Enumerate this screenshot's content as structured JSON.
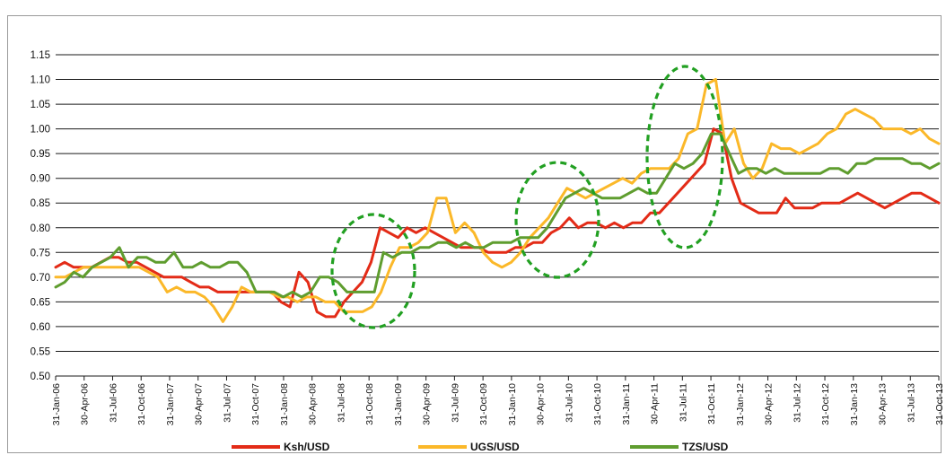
{
  "chart_data": {
    "type": "line",
    "title": "",
    "xlabel": "",
    "ylabel": "",
    "ylim": [
      0.5,
      1.15
    ],
    "yticks": [
      "0.50",
      "0.55",
      "0.60",
      "0.65",
      "0.70",
      "0.75",
      "0.80",
      "0.85",
      "0.90",
      "0.95",
      "1.00",
      "1.05",
      "1.10",
      "1.15"
    ],
    "grid": true,
    "legend_position": "bottom",
    "xticks": [
      "31-Jan-06",
      "30-Apr-06",
      "31-Jul-06",
      "31-Oct-06",
      "31-Jan-07",
      "30-Apr-07",
      "31-Jul-07",
      "31-Oct-07",
      "31-Jan-08",
      "30-Apr-08",
      "31-Jul-08",
      "31-Oct-08",
      "31-Jan-09",
      "30-Apr-09",
      "31-Jul-09",
      "31-Oct-09",
      "31-Jan-10",
      "30-Apr-10",
      "31-Jul-10",
      "31-Oct-10",
      "31-Jan-11",
      "30-Apr-11",
      "31-Jul-11",
      "31-Oct-11",
      "31-Jan-12",
      "30-Apr-12",
      "31-Jul-12",
      "31-Oct-12",
      "31-Jan-13",
      "30-Apr-13",
      "31-Jul-13",
      "31-Oct-13"
    ],
    "series": [
      {
        "name": "Ksh/USD",
        "color": "#e32b17",
        "values": [
          0.72,
          0.73,
          0.72,
          0.72,
          0.72,
          0.73,
          0.74,
          0.74,
          0.73,
          0.73,
          0.72,
          0.71,
          0.7,
          0.7,
          0.7,
          0.69,
          0.68,
          0.68,
          0.67,
          0.67,
          0.67,
          0.67,
          0.67,
          0.67,
          0.67,
          0.65,
          0.64,
          0.71,
          0.69,
          0.63,
          0.62,
          0.62,
          0.65,
          0.67,
          0.69,
          0.73,
          0.8,
          0.79,
          0.78,
          0.8,
          0.79,
          0.8,
          0.79,
          0.78,
          0.77,
          0.76,
          0.76,
          0.76,
          0.75,
          0.75,
          0.75,
          0.76,
          0.76,
          0.77,
          0.77,
          0.79,
          0.8,
          0.82,
          0.8,
          0.81,
          0.81,
          0.8,
          0.81,
          0.8,
          0.81,
          0.81,
          0.83,
          0.83,
          0.85,
          0.87,
          0.89,
          0.91,
          0.93,
          1.0,
          0.99,
          0.9,
          0.85,
          0.84,
          0.83,
          0.83,
          0.83,
          0.86,
          0.84,
          0.84,
          0.84,
          0.85,
          0.85,
          0.85,
          0.86,
          0.87,
          0.86,
          0.85,
          0.84,
          0.85,
          0.86,
          0.87,
          0.87,
          0.86,
          0.85
        ]
      },
      {
        "name": "UGS/USD",
        "color": "#fbb829",
        "values": [
          0.7,
          0.7,
          0.71,
          0.72,
          0.72,
          0.72,
          0.72,
          0.72,
          0.72,
          0.72,
          0.71,
          0.7,
          0.67,
          0.68,
          0.67,
          0.67,
          0.66,
          0.64,
          0.61,
          0.64,
          0.68,
          0.67,
          0.67,
          0.67,
          0.66,
          0.66,
          0.65,
          0.66,
          0.66,
          0.65,
          0.65,
          0.63,
          0.63,
          0.63,
          0.64,
          0.67,
          0.72,
          0.76,
          0.76,
          0.77,
          0.79,
          0.86,
          0.86,
          0.79,
          0.81,
          0.79,
          0.75,
          0.73,
          0.72,
          0.73,
          0.75,
          0.78,
          0.8,
          0.82,
          0.85,
          0.88,
          0.87,
          0.86,
          0.87,
          0.88,
          0.89,
          0.9,
          0.89,
          0.91,
          0.92,
          0.92,
          0.92,
          0.94,
          0.99,
          1.0,
          1.09,
          1.1,
          0.97,
          1.0,
          0.93,
          0.9,
          0.92,
          0.97,
          0.96,
          0.96,
          0.95,
          0.96,
          0.97,
          0.99,
          1.0,
          1.03,
          1.04,
          1.03,
          1.02,
          1.0,
          1.0,
          1.0,
          0.99,
          1.0,
          0.98,
          0.97
        ]
      },
      {
        "name": "TZS/USD",
        "color": "#5f9d2f",
        "values": [
          0.68,
          0.69,
          0.71,
          0.7,
          0.72,
          0.73,
          0.74,
          0.76,
          0.72,
          0.74,
          0.74,
          0.73,
          0.73,
          0.75,
          0.72,
          0.72,
          0.73,
          0.72,
          0.72,
          0.73,
          0.73,
          0.71,
          0.67,
          0.67,
          0.67,
          0.66,
          0.67,
          0.66,
          0.67,
          0.7,
          0.7,
          0.69,
          0.67,
          0.67,
          0.67,
          0.67,
          0.75,
          0.74,
          0.75,
          0.75,
          0.76,
          0.76,
          0.77,
          0.77,
          0.76,
          0.77,
          0.76,
          0.76,
          0.77,
          0.77,
          0.77,
          0.78,
          0.78,
          0.78,
          0.8,
          0.83,
          0.86,
          0.87,
          0.88,
          0.87,
          0.86,
          0.86,
          0.86,
          0.87,
          0.88,
          0.87,
          0.87,
          0.9,
          0.93,
          0.92,
          0.93,
          0.95,
          0.99,
          0.99,
          0.95,
          0.91,
          0.92,
          0.92,
          0.91,
          0.92,
          0.91,
          0.91,
          0.91,
          0.91,
          0.91,
          0.92,
          0.92,
          0.91,
          0.93,
          0.93,
          0.94,
          0.94,
          0.94,
          0.94,
          0.93,
          0.93,
          0.92,
          0.93
        ]
      }
    ]
  }
}
